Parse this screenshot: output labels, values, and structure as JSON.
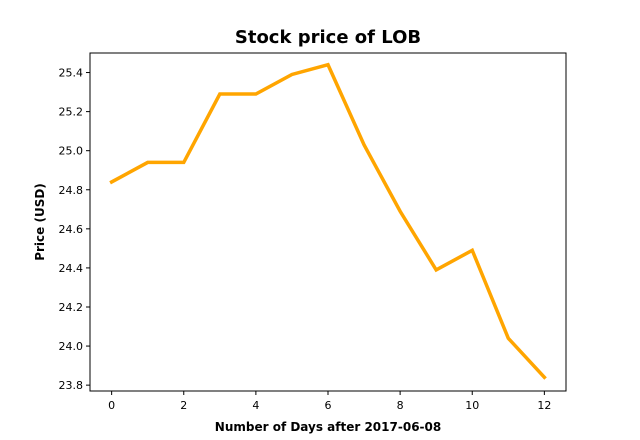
{
  "chart_data": {
    "type": "line",
    "title": "Stock price of LOB",
    "xlabel": "Number of Days after 2017-06-08",
    "ylabel": "Price (USD)",
    "x": [
      0,
      1,
      2,
      3,
      4,
      5,
      6,
      7,
      8,
      9,
      10,
      11,
      12
    ],
    "series": [
      {
        "values": [
          24.84,
          24.94,
          24.94,
          25.29,
          25.29,
          25.39,
          25.44,
          25.03,
          24.69,
          24.39,
          24.49,
          24.04,
          23.84
        ],
        "color": "#FFA500"
      }
    ],
    "xlim": [
      -0.6,
      12.6
    ],
    "ylim": [
      23.77,
      25.5
    ],
    "xticks": [
      0,
      2,
      4,
      6,
      8,
      10,
      12
    ],
    "yticks": [
      23.8,
      24.0,
      24.2,
      24.4,
      24.6,
      24.8,
      25.0,
      25.2,
      25.4
    ],
    "yticks_labels": [
      "23.8",
      "24.0",
      "24.2",
      "24.4",
      "24.6",
      "24.8",
      "25.0",
      "25.2",
      "25.4"
    ],
    "grid": false,
    "legend": "none"
  }
}
